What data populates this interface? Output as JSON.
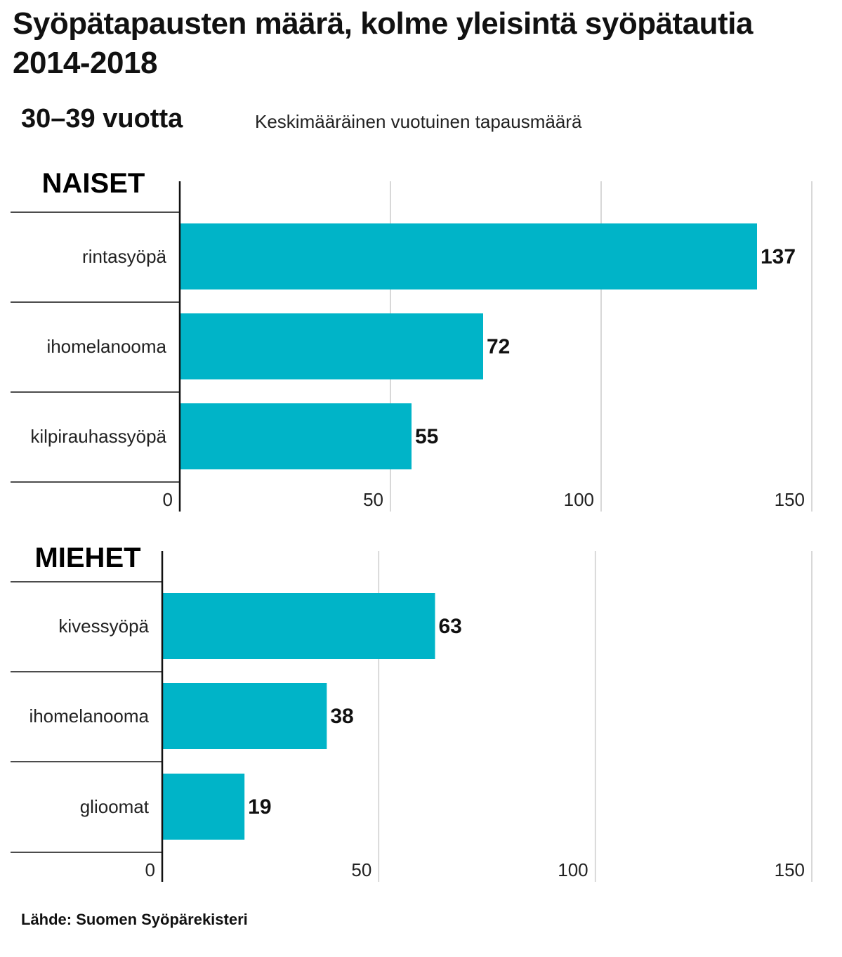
{
  "title": "Syöpätapausten määrä, kolme yleisintä syöpätautia 2014-2018",
  "age_group": "30–39 vuotta",
  "description": "Keskimääräinen vuotuinen tapausmäärä",
  "source": "Lähde: Suomen Syöpärekisteri",
  "colors": {
    "bar": "#00b4c8",
    "grid": "#cccccc",
    "axis": "#111111"
  },
  "chart_data": [
    {
      "type": "bar",
      "orientation": "horizontal",
      "title": "NAISET",
      "categories": [
        "rintasyöpä",
        "ihomelanooma",
        "kilpirauhassyöpä"
      ],
      "values": [
        137,
        72,
        55
      ],
      "xlim": [
        0,
        150
      ],
      "ticks": [
        0,
        50,
        100,
        150
      ],
      "grid": true
    },
    {
      "type": "bar",
      "orientation": "horizontal",
      "title": "MIEHET",
      "categories": [
        "kivessyöpä",
        "ihomelanooma",
        "glioomat"
      ],
      "values": [
        63,
        38,
        19
      ],
      "xlim": [
        0,
        150
      ],
      "ticks": [
        0,
        50,
        100,
        150
      ],
      "grid": true
    }
  ]
}
